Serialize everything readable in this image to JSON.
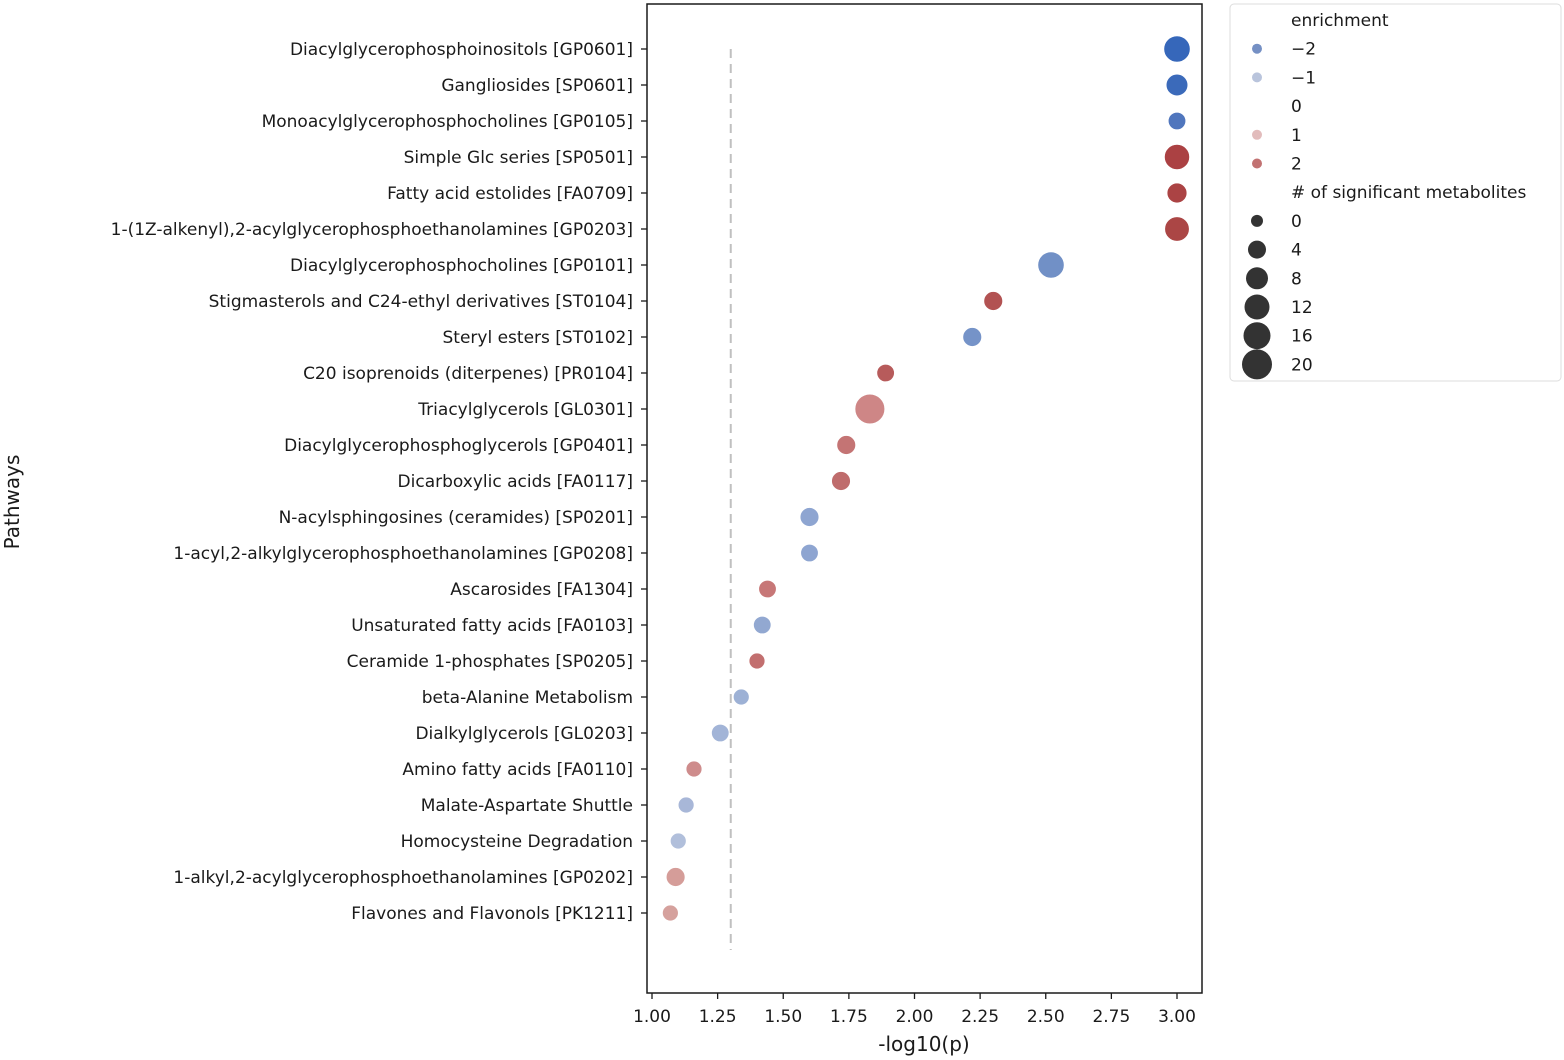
{
  "chart_data": {
    "type": "scatter",
    "title": "",
    "xlabel": "-log10(p)",
    "ylabel": "Pathways",
    "xlim": [
      0.98,
      3.09
    ],
    "x_ticks": [
      1.0,
      1.25,
      1.5,
      1.75,
      2.0,
      2.25,
      2.5,
      2.75,
      3.0
    ],
    "x_tick_labels": [
      "1.00",
      "1.25",
      "1.50",
      "1.75",
      "2.00",
      "2.25",
      "2.50",
      "2.75",
      "3.00"
    ],
    "threshold_line": {
      "x": 1.3,
      "style": "dashed",
      "color": "#c0c0c0"
    },
    "grid": false,
    "legend_position": "upper right outside",
    "points": [
      {
        "pathway": "Diacylglycerophosphoinositols [GP0601]",
        "neglog10p": 3.0,
        "enrichment": -3.5,
        "n_sig": 13,
        "color": "#3062b8"
      },
      {
        "pathway": "Gangliosides [SP0601]",
        "neglog10p": 3.0,
        "enrichment": -3.3,
        "n_sig": 6,
        "color": "#3565b8"
      },
      {
        "pathway": "Monoacylglycerophosphocholines [GP0105]",
        "neglog10p": 3.0,
        "enrichment": -2.8,
        "n_sig": 2,
        "color": "#4a72bb"
      },
      {
        "pathway": "Simple Glc series [SP0501]",
        "neglog10p": 3.0,
        "enrichment": 3.3,
        "n_sig": 11,
        "color": "#a83b3d"
      },
      {
        "pathway": "Fatty acid estolides [FA0709]",
        "neglog10p": 3.0,
        "enrichment": 3.2,
        "n_sig": 4,
        "color": "#a83d3e"
      },
      {
        "pathway": "1-(1Z-alkenyl),2-acylglycerophosphoethanolamines [GP0203]",
        "neglog10p": 3.0,
        "enrichment": 3.2,
        "n_sig": 10,
        "color": "#a8403f"
      },
      {
        "pathway": "Diacylglycerophosphocholines [GP0101]",
        "neglog10p": 2.52,
        "enrichment": -2.0,
        "n_sig": 13,
        "color": "#6c8cc4"
      },
      {
        "pathway": "Stigmasterols and C24-ethyl derivatives [ST0104]",
        "neglog10p": 2.3,
        "enrichment": 2.6,
        "n_sig": 3,
        "color": "#b04c4c"
      },
      {
        "pathway": "Steryl esters [ST0102]",
        "neglog10p": 2.22,
        "enrichment": -1.9,
        "n_sig": 3,
        "color": "#7190c6"
      },
      {
        "pathway": "C20 isoprenoids (diterpenes) [PR0104]",
        "neglog10p": 1.89,
        "enrichment": 2.4,
        "n_sig": 2,
        "color": "#b55656"
      },
      {
        "pathway": "Triacylglycerols [GL0301]",
        "neglog10p": 1.83,
        "enrichment": 1.6,
        "n_sig": 20,
        "color": "#cc8282"
      },
      {
        "pathway": "Diacylglycerophosphoglycerols [GP0401]",
        "neglog10p": 1.74,
        "enrichment": 1.9,
        "n_sig": 3,
        "color": "#c27070"
      },
      {
        "pathway": "Dicarboxylic acids [FA0117]",
        "neglog10p": 1.72,
        "enrichment": 2.1,
        "n_sig": 3,
        "color": "#bd6767"
      },
      {
        "pathway": "N-acylsphingosines (ceramides) [SP0201]",
        "neglog10p": 1.6,
        "enrichment": -1.5,
        "n_sig": 3,
        "color": "#8aa2cf"
      },
      {
        "pathway": "1-acyl,2-alkylglycerophosphoethanolamines [GP0208]",
        "neglog10p": 1.6,
        "enrichment": -1.5,
        "n_sig": 2,
        "color": "#8aa2cf"
      },
      {
        "pathway": "Ascarosides [FA1304]",
        "neglog10p": 1.44,
        "enrichment": 1.8,
        "n_sig": 2,
        "color": "#c57373"
      },
      {
        "pathway": "Unsaturated fatty acids [FA0103]",
        "neglog10p": 1.42,
        "enrichment": -1.5,
        "n_sig": 2,
        "color": "#8ea5d0"
      },
      {
        "pathway": "Ceramide 1-phosphates [SP0205]",
        "neglog10p": 1.4,
        "enrichment": 2.0,
        "n_sig": 1,
        "color": "#c06a6a"
      },
      {
        "pathway": "beta-Alanine Metabolism",
        "neglog10p": 1.34,
        "enrichment": -1.3,
        "n_sig": 1,
        "color": "#9aaed4"
      },
      {
        "pathway": "Dialkylglycerols [GL0203]",
        "neglog10p": 1.26,
        "enrichment": -1.3,
        "n_sig": 2,
        "color": "#9fb2d6"
      },
      {
        "pathway": "Amino fatty acids [FA0110]",
        "neglog10p": 1.16,
        "enrichment": 1.5,
        "n_sig": 1,
        "color": "#cc8888"
      },
      {
        "pathway": "Malate-Aspartate Shuttle",
        "neglog10p": 1.13,
        "enrichment": -1.2,
        "n_sig": 1,
        "color": "#a5b5d7"
      },
      {
        "pathway": "Homocysteine Degradation",
        "neglog10p": 1.1,
        "enrichment": -1.1,
        "n_sig": 1,
        "color": "#aebdda"
      },
      {
        "pathway": "1-alkyl,2-acylglycerophosphoethanolamines [GP0202]",
        "neglog10p": 1.09,
        "enrichment": 1.3,
        "n_sig": 3,
        "color": "#d49a96"
      },
      {
        "pathway": "Flavones and Flavonols [PK1211]",
        "neglog10p": 1.07,
        "enrichment": 1.3,
        "n_sig": 1,
        "color": "#d49e9a"
      }
    ],
    "legend": {
      "hue_title": "enrichment",
      "hue_entries": [
        {
          "label": "−2",
          "color": "#7590c4"
        },
        {
          "label": "−1",
          "color": "#b9c4dc"
        },
        {
          "label": "0",
          "color": null
        },
        {
          "label": "1",
          "color": "#e2bcbc"
        },
        {
          "label": "2",
          "color": "#c27272"
        }
      ],
      "size_title": "# of significant metabolites",
      "size_entries": [
        {
          "label": "0",
          "radius": 6
        },
        {
          "label": "4",
          "radius": 9
        },
        {
          "label": "8",
          "radius": 11
        },
        {
          "label": "12",
          "radius": 12.5
        },
        {
          "label": "16",
          "radius": 13.5
        },
        {
          "label": "20",
          "radius": 15
        }
      ]
    }
  }
}
